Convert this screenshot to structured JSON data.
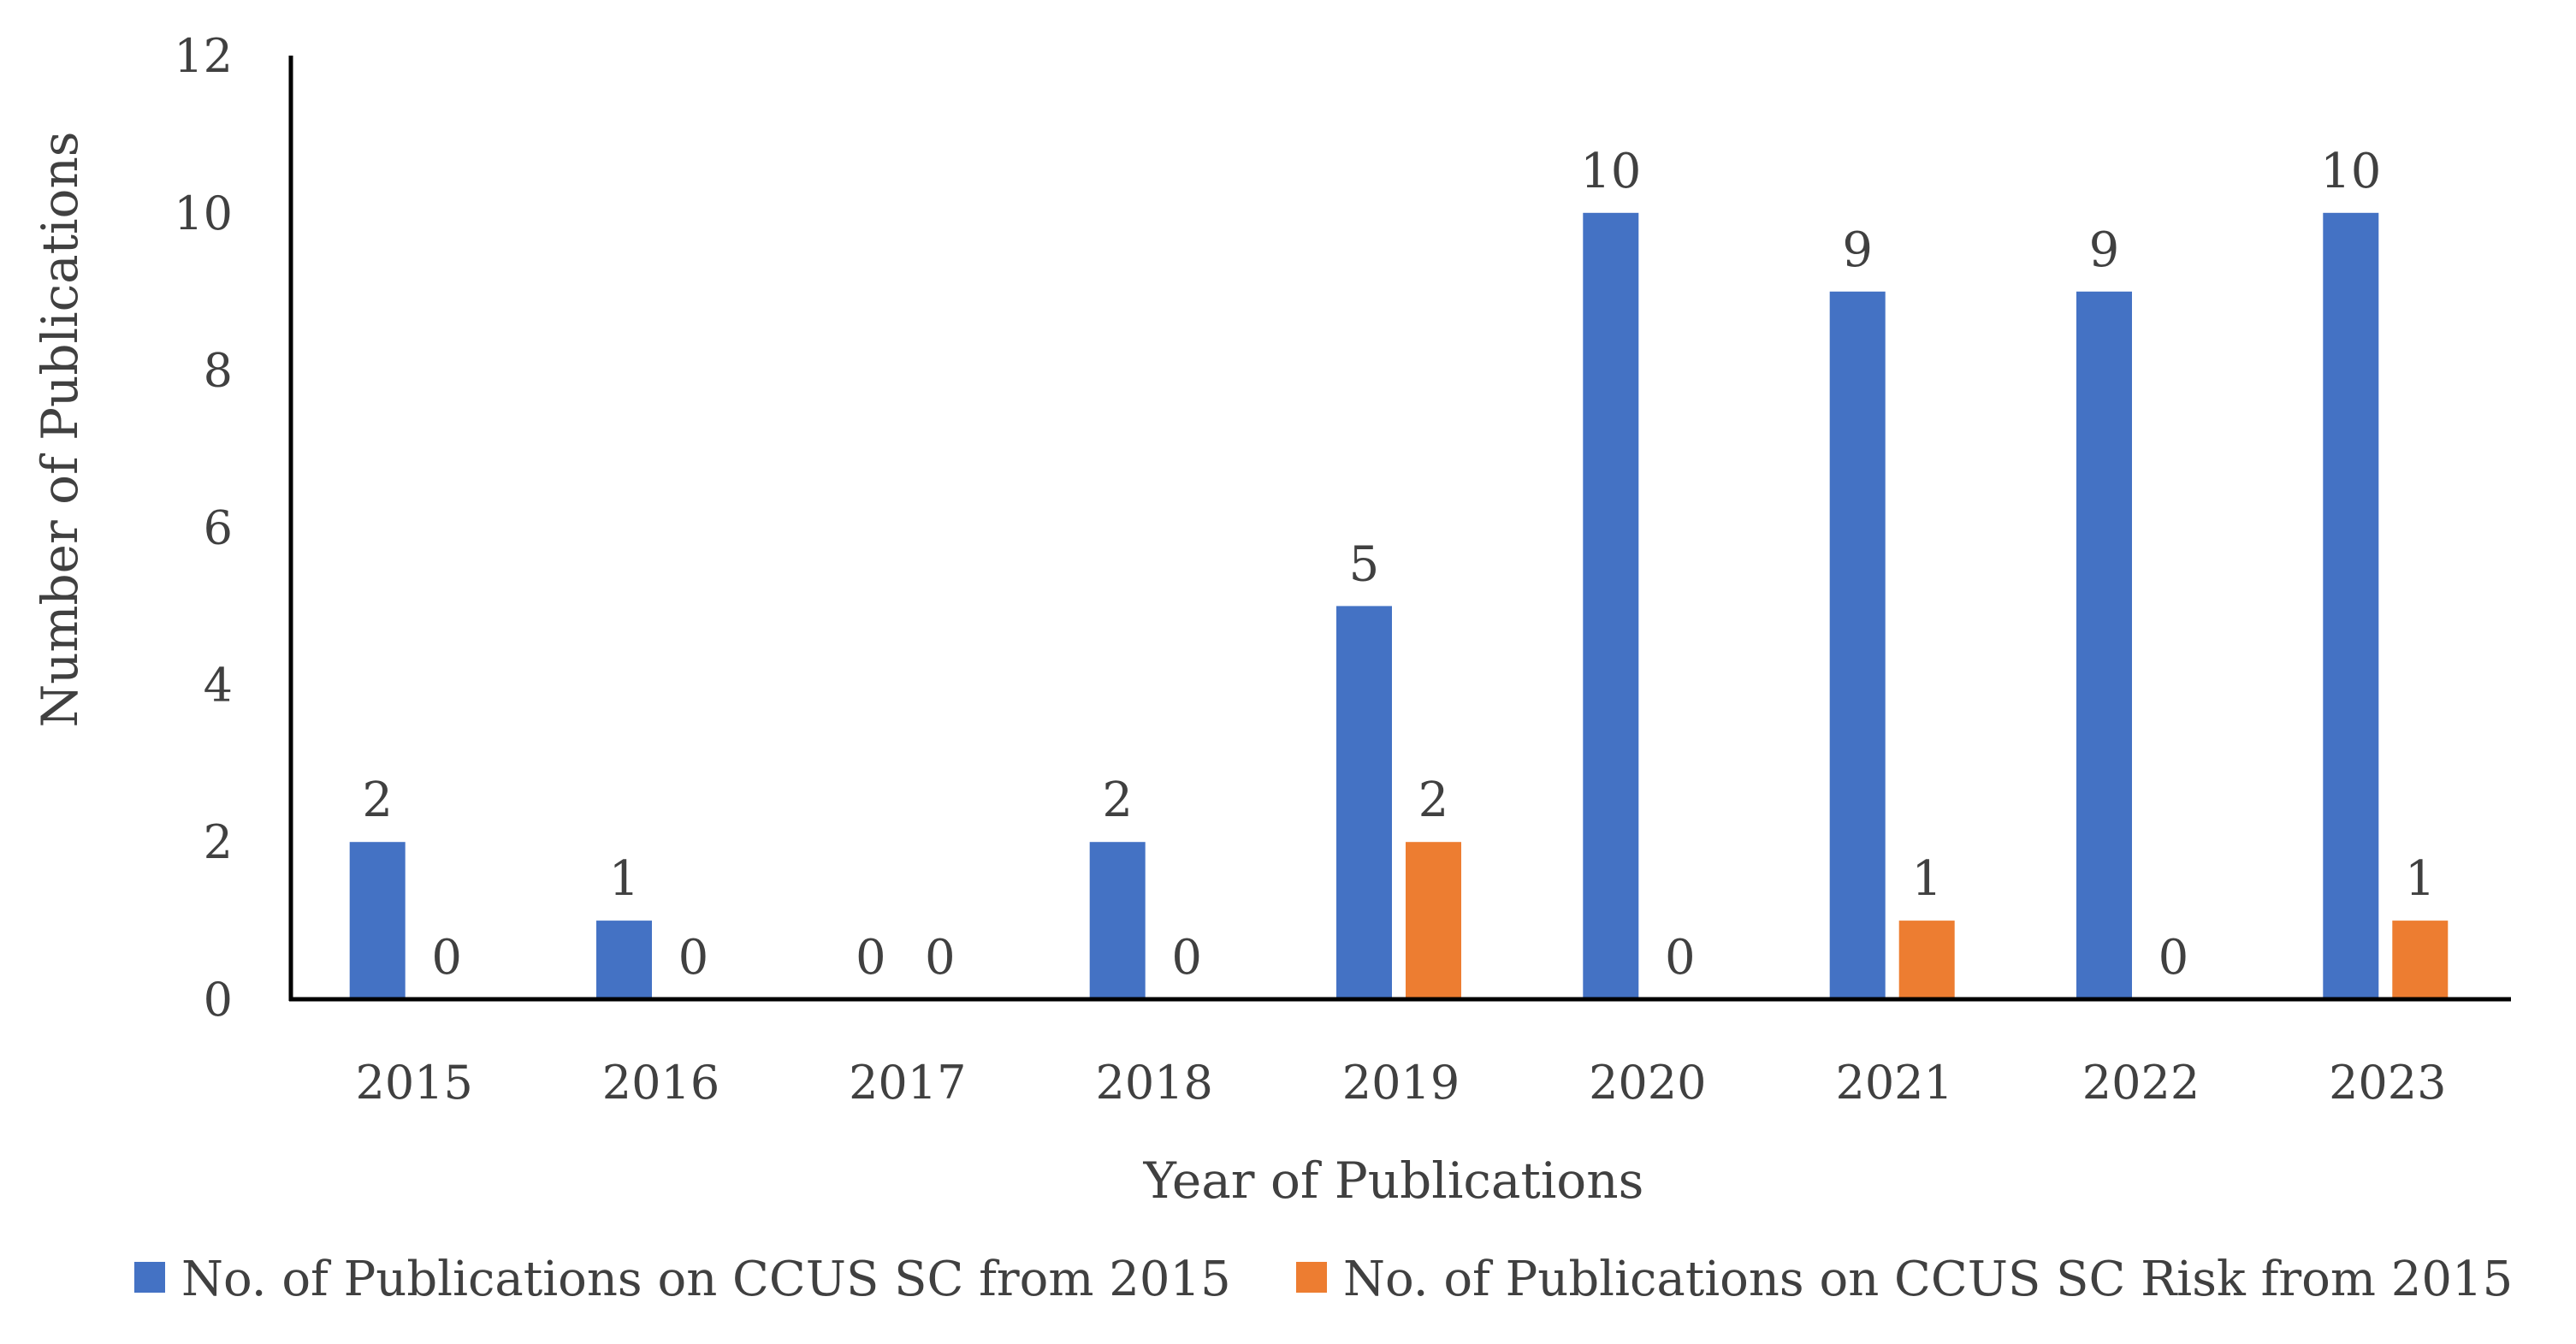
{
  "chart_data": {
    "type": "bar",
    "title": "",
    "xlabel": "Year of Publications",
    "ylabel": "Number of Publications",
    "ylim": [
      0,
      12
    ],
    "yticks": [
      0,
      2,
      4,
      6,
      8,
      10,
      12
    ],
    "grid": false,
    "legend_position": "bottom",
    "categories": [
      "2015",
      "2016",
      "2017",
      "2018",
      "2019",
      "2020",
      "2021",
      "2022",
      "2023"
    ],
    "series": [
      {
        "name": "No. of Publications on CCUS SC from 2015",
        "color": "#4472C4",
        "values": [
          2,
          1,
          0,
          2,
          5,
          10,
          9,
          9,
          10
        ]
      },
      {
        "name": "No. of Publications on CCUS SC Risk from 2015",
        "color": "#ED7D31",
        "values": [
          0,
          0,
          0,
          0,
          2,
          0,
          1,
          0,
          1
        ]
      }
    ]
  }
}
